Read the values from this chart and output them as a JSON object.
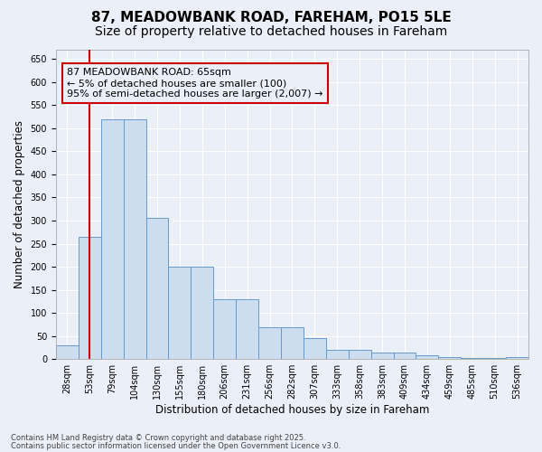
{
  "title": "87, MEADOWBANK ROAD, FAREHAM, PO15 5LE",
  "subtitle": "Size of property relative to detached houses in Fareham",
  "xlabel": "Distribution of detached houses by size in Fareham",
  "ylabel": "Number of detached properties",
  "footnote1": "Contains HM Land Registry data © Crown copyright and database right 2025.",
  "footnote2": "Contains public sector information licensed under the Open Government Licence v3.0.",
  "categories": [
    "28sqm",
    "53sqm",
    "79sqm",
    "104sqm",
    "130sqm",
    "155sqm",
    "180sqm",
    "206sqm",
    "231sqm",
    "256sqm",
    "282sqm",
    "307sqm",
    "333sqm",
    "358sqm",
    "383sqm",
    "409sqm",
    "434sqm",
    "459sqm",
    "485sqm",
    "510sqm",
    "536sqm"
  ],
  "values": [
    30,
    265,
    520,
    520,
    305,
    200,
    200,
    130,
    130,
    68,
    68,
    45,
    20,
    20,
    14,
    14,
    8,
    5,
    3,
    2,
    5
  ],
  "bar_color": "#ccddf0",
  "bar_edge_color": "#6699cc",
  "annotation_box_color": "#cc0000",
  "annotation_text": "87 MEADOWBANK ROAD: 65sqm\n← 5% of detached houses are smaller (100)\n95% of semi-detached houses are larger (2,007) →",
  "vline_color": "#cc0000",
  "vline_pos": 1.5,
  "ylim": [
    0,
    670
  ],
  "yticks": [
    0,
    50,
    100,
    150,
    200,
    250,
    300,
    350,
    400,
    450,
    500,
    550,
    600,
    650
  ],
  "background_color": "#eaeff8",
  "grid_color": "#ffffff",
  "title_fontsize": 11,
  "subtitle_fontsize": 10,
  "label_fontsize": 8.5,
  "tick_fontsize": 7,
  "annotation_fontsize": 8,
  "footnote_fontsize": 6
}
